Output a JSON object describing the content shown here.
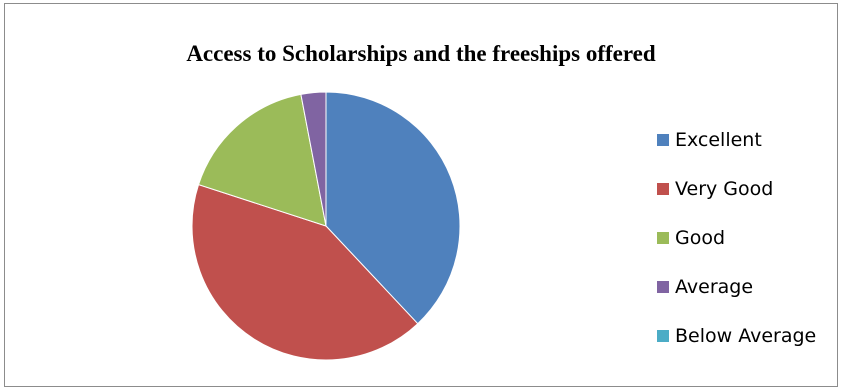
{
  "chart_data": {
    "type": "pie",
    "title": "Access to Scholarships and the freeships offered",
    "categories": [
      "Excellent",
      "Very Good",
      "Good",
      "Average",
      "Below Average"
    ],
    "values": [
      38,
      42,
      17,
      3,
      0
    ],
    "colors": [
      "#4f81bd",
      "#c0504d",
      "#9bbb59",
      "#8064a2",
      "#4bacc6"
    ],
    "legend_position": "right"
  }
}
